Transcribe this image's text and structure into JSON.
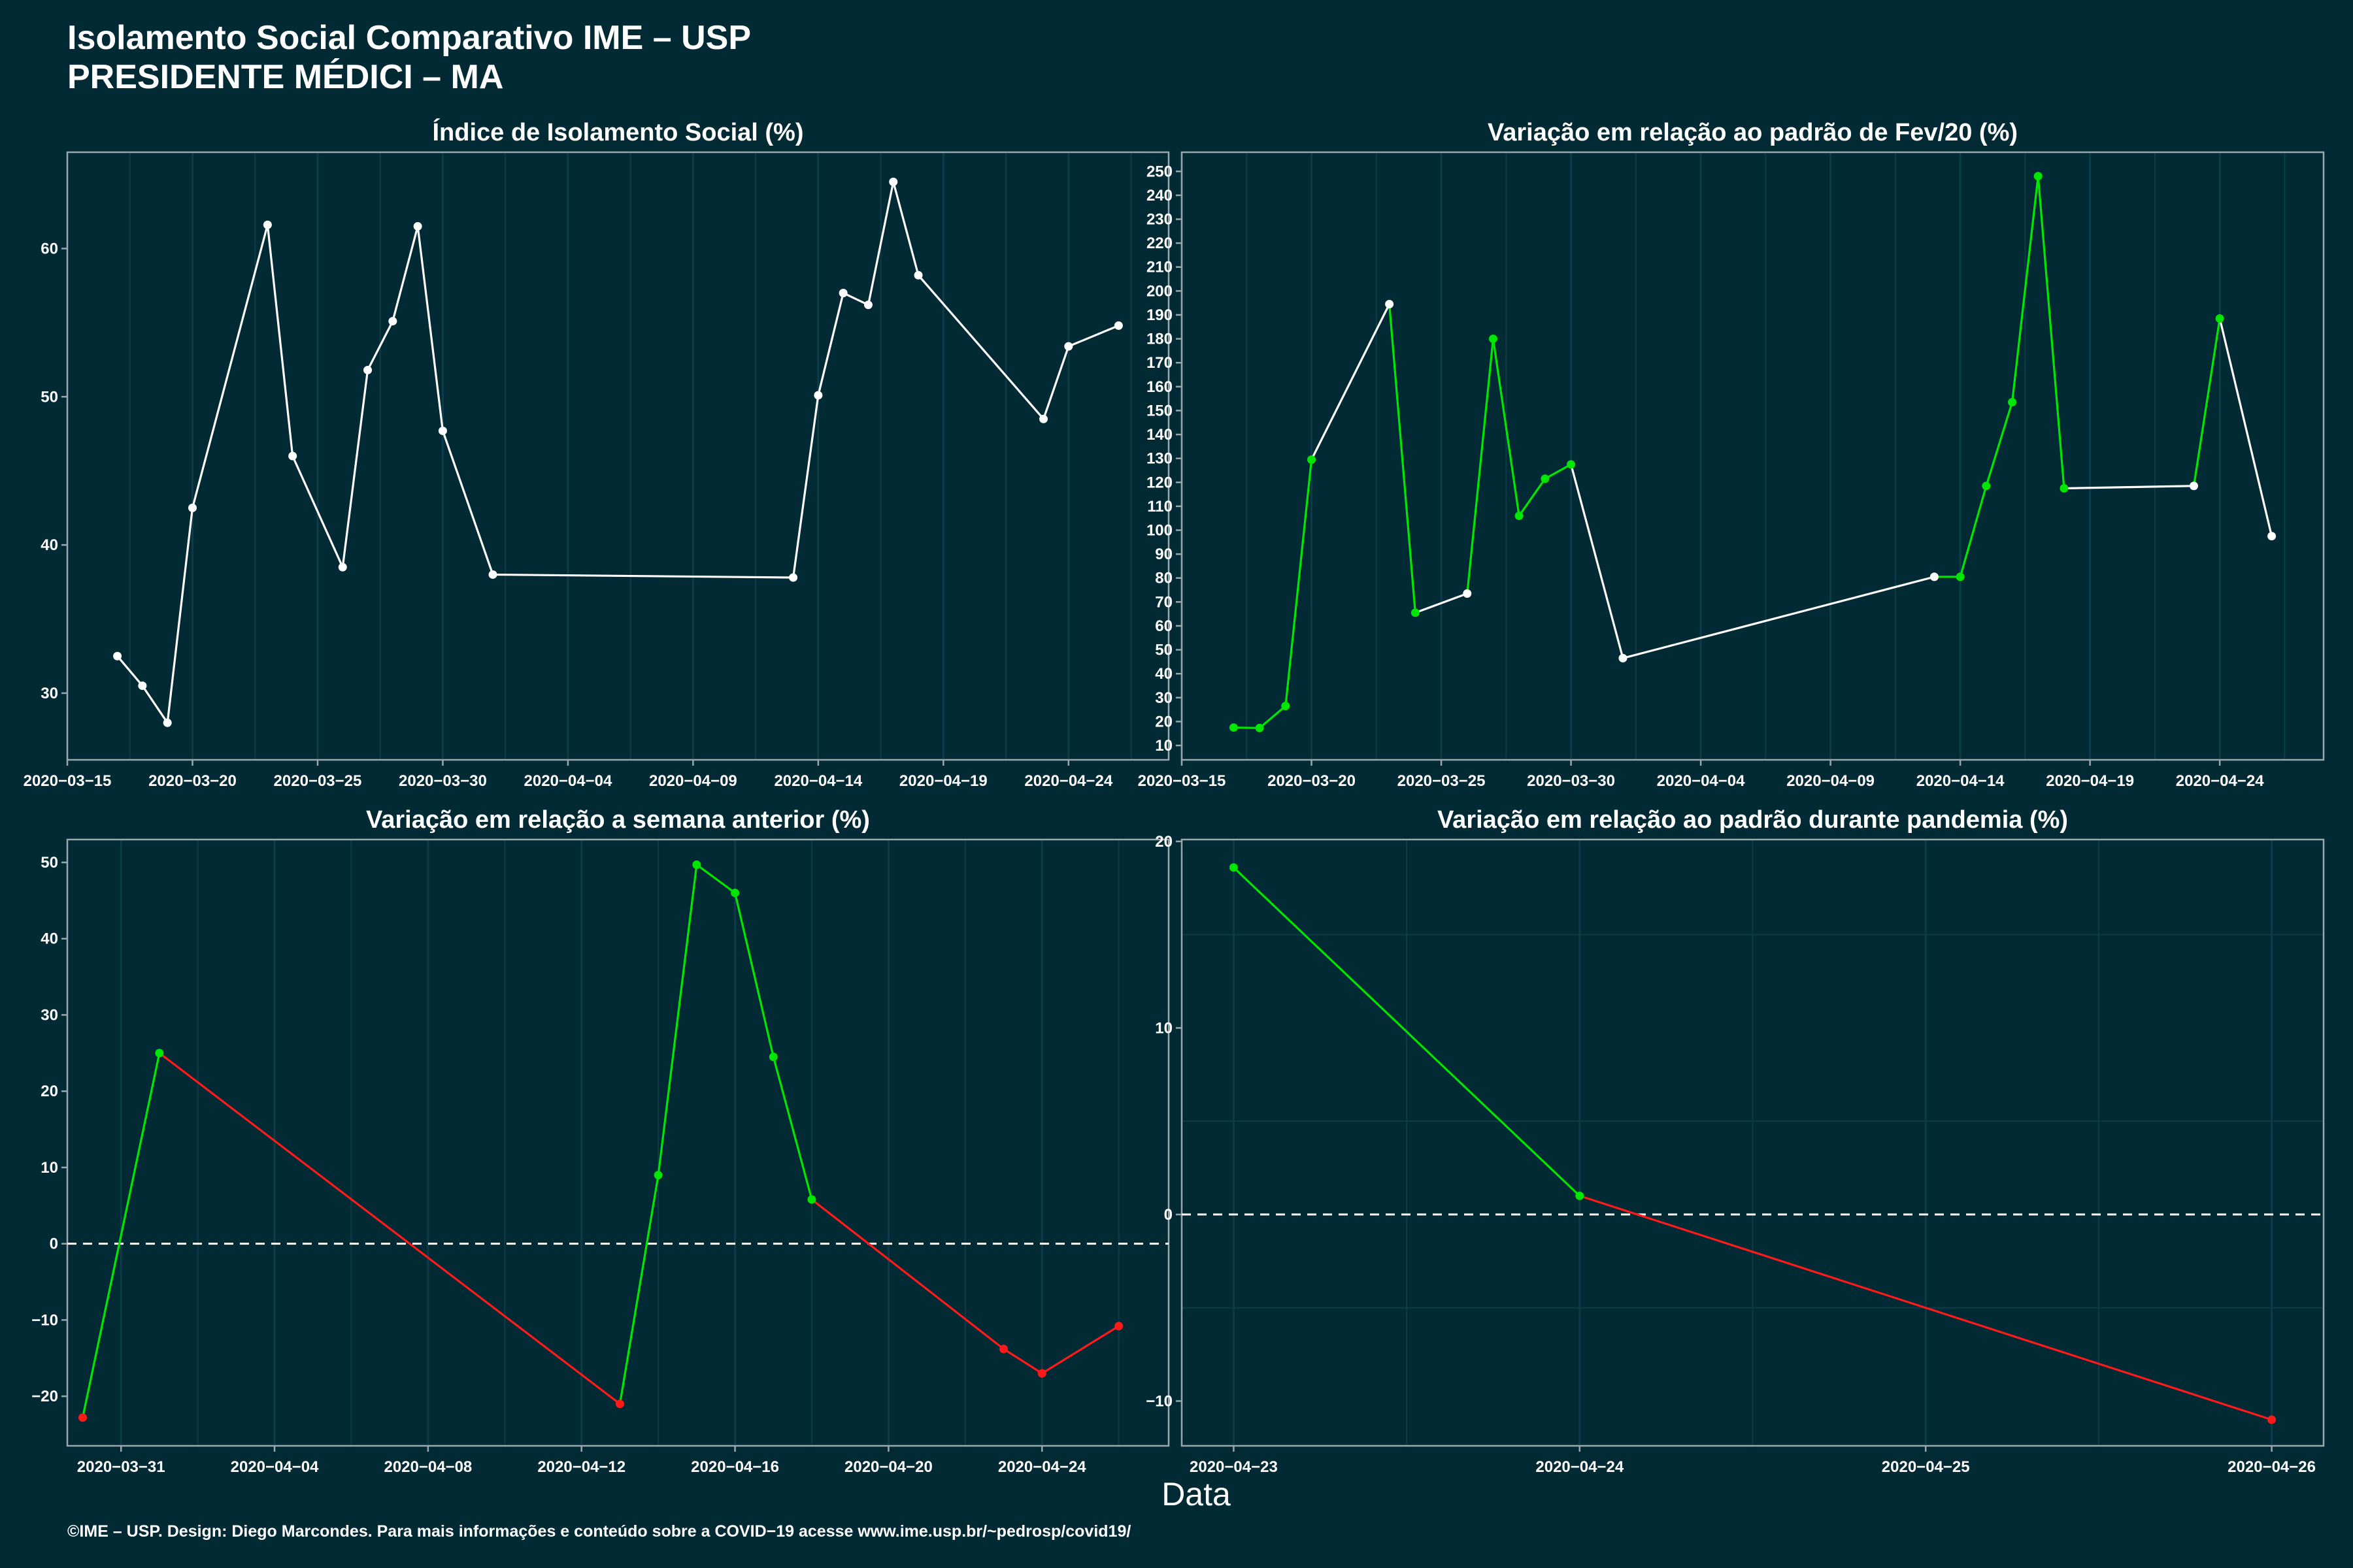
{
  "page": {
    "title_line1": "Isolamento Social Comparativo IME – USP",
    "title_line2": "PRESIDENTE MÉDICI – MA",
    "xlabel": "Data",
    "footer": "©IME – USP. Design: Diego Marcondes. Para mais informações e conteúdo sobre a COVID−19 acesse www.ime.usp.br/~pedrosp/covid19/"
  },
  "colors": {
    "background": "#022a35",
    "axis": "#9aa8ad",
    "grid": "#0d3c48",
    "neutral": "#ffffff",
    "increase": "#00e600",
    "decrease": "#ff1a1a"
  },
  "chart_data": [
    {
      "type": "line",
      "title": "Índice de Isolamento Social (%)",
      "xlim": [
        "2020-03-15",
        "2020-04-28"
      ],
      "ylim": [
        25.5,
        66.5
      ],
      "yticks": [
        30,
        40,
        50,
        60
      ],
      "xticks": [
        "2020-03-15",
        "2020-03-20",
        "2020-03-25",
        "2020-03-30",
        "2020-04-04",
        "2020-04-09",
        "2020-04-14",
        "2020-04-19",
        "2020-04-24"
      ],
      "xtick_labels": [
        "2020−03−15",
        "2020−03−20",
        "2020−03−25",
        "2020−03−30",
        "2020−04−04",
        "2020−04−09",
        "2020−04−14",
        "2020−04−19",
        "2020−04−24"
      ],
      "ytick_labels": [
        "30",
        "40",
        "50",
        "60"
      ],
      "reference_line": null,
      "points": [
        {
          "x": "2020-03-17",
          "y": 32.5,
          "c": "n"
        },
        {
          "x": "2020-03-18",
          "y": 30.5,
          "c": "n"
        },
        {
          "x": "2020-03-19",
          "y": 28.0,
          "c": "n"
        },
        {
          "x": "2020-03-20",
          "y": 42.5,
          "c": "n"
        },
        {
          "x": "2020-03-23",
          "y": 61.6,
          "c": "n"
        },
        {
          "x": "2020-03-24",
          "y": 46.0,
          "c": "n"
        },
        {
          "x": "2020-03-26",
          "y": 38.5,
          "c": "n"
        },
        {
          "x": "2020-03-27",
          "y": 51.8,
          "c": "n"
        },
        {
          "x": "2020-03-28",
          "y": 55.1,
          "c": "n"
        },
        {
          "x": "2020-03-29",
          "y": 61.5,
          "c": "n"
        },
        {
          "x": "2020-03-30",
          "y": 47.7,
          "c": "n"
        },
        {
          "x": "2020-04-01",
          "y": 38.0,
          "c": "n"
        },
        {
          "x": "2020-04-13",
          "y": 37.8,
          "c": "n"
        },
        {
          "x": "2020-04-14",
          "y": 50.1,
          "c": "n"
        },
        {
          "x": "2020-04-15",
          "y": 57.0,
          "c": "n"
        },
        {
          "x": "2020-04-16",
          "y": 56.2,
          "c": "n"
        },
        {
          "x": "2020-04-17",
          "y": 64.5,
          "c": "n"
        },
        {
          "x": "2020-04-18",
          "y": 58.2,
          "c": "n"
        },
        {
          "x": "2020-04-23",
          "y": 48.5,
          "c": "n"
        },
        {
          "x": "2020-04-24",
          "y": 53.4,
          "c": "n"
        },
        {
          "x": "2020-04-26",
          "y": 54.8,
          "c": "n"
        }
      ]
    },
    {
      "type": "line",
      "title": "Variação em relação ao padrão de Fev/20 (%)",
      "xlim": [
        "2020-03-15",
        "2020-04-28"
      ],
      "ylim": [
        4,
        258
      ],
      "yticks": [
        10,
        20,
        30,
        40,
        50,
        60,
        70,
        80,
        90,
        100,
        110,
        120,
        130,
        140,
        150,
        160,
        170,
        180,
        190,
        200,
        210,
        220,
        230,
        240,
        250
      ],
      "ytick_labels": [
        "10",
        "20",
        "30",
        "40",
        "50",
        "60",
        "70",
        "80",
        "90",
        "100",
        "110",
        "120",
        "130",
        "140",
        "150",
        "160",
        "170",
        "180",
        "190",
        "200",
        "210",
        "220",
        "230",
        "240",
        "250"
      ],
      "xticks": [
        "2020-03-15",
        "2020-03-20",
        "2020-03-25",
        "2020-03-30",
        "2020-04-04",
        "2020-04-09",
        "2020-04-14",
        "2020-04-19",
        "2020-04-24"
      ],
      "xtick_labels": [
        "2020−03−15",
        "2020−03−20",
        "2020−03−25",
        "2020−03−30",
        "2020−04−04",
        "2020−04−09",
        "2020−04−14",
        "2020−04−19",
        "2020−04−24"
      ],
      "reference_line": null,
      "points": [
        {
          "x": "2020-03-17",
          "y": 17.5,
          "c": "g"
        },
        {
          "x": "2020-03-18",
          "y": 17.3,
          "c": "g"
        },
        {
          "x": "2020-03-19",
          "y": 26.5,
          "c": "g"
        },
        {
          "x": "2020-03-20",
          "y": 129.5,
          "c": "g"
        },
        {
          "x": "2020-03-23",
          "y": 194.5,
          "c": "n"
        },
        {
          "x": "2020-03-24",
          "y": 65.5,
          "c": "g"
        },
        {
          "x": "2020-03-26",
          "y": 73.5,
          "c": "n"
        },
        {
          "x": "2020-03-27",
          "y": 180.0,
          "c": "g"
        },
        {
          "x": "2020-03-28",
          "y": 106.0,
          "c": "g"
        },
        {
          "x": "2020-03-29",
          "y": 121.5,
          "c": "g"
        },
        {
          "x": "2020-03-30",
          "y": 127.5,
          "c": "g"
        },
        {
          "x": "2020-04-01",
          "y": 46.5,
          "c": "n"
        },
        {
          "x": "2020-04-13",
          "y": 80.5,
          "c": "n"
        },
        {
          "x": "2020-04-14",
          "y": 80.5,
          "c": "g"
        },
        {
          "x": "2020-04-15",
          "y": 118.5,
          "c": "g"
        },
        {
          "x": "2020-04-16",
          "y": 153.5,
          "c": "g"
        },
        {
          "x": "2020-04-17",
          "y": 248.0,
          "c": "g"
        },
        {
          "x": "2020-04-18",
          "y": 117.5,
          "c": "g"
        },
        {
          "x": "2020-04-23",
          "y": 118.5,
          "c": "n"
        },
        {
          "x": "2020-04-24",
          "y": 188.5,
          "c": "g"
        },
        {
          "x": "2020-04-26",
          "y": 97.5,
          "c": "n"
        }
      ]
    },
    {
      "type": "line",
      "title": "Variação em relação a semana anterior (%)",
      "xlim": [
        "2020-03-29.6",
        "2020-04-27.3"
      ],
      "ylim": [
        -26.5,
        53
      ],
      "yticks": [
        -20,
        -10,
        0,
        10,
        20,
        30,
        40,
        50
      ],
      "ytick_labels": [
        "−20",
        "−10",
        "0",
        "10",
        "20",
        "30",
        "40",
        "50"
      ],
      "xticks": [
        "2020-03-31",
        "2020-04-04",
        "2020-04-08",
        "2020-04-12",
        "2020-04-16",
        "2020-04-20",
        "2020-04-24"
      ],
      "xtick_labels": [
        "2020−03−31",
        "2020−04−04",
        "2020−04−08",
        "2020−04−12",
        "2020−04−16",
        "2020−04−20",
        "2020−04−24"
      ],
      "reference_line": 0,
      "points": [
        {
          "x": "2020-03-30",
          "y": -22.8,
          "c": "r"
        },
        {
          "x": "2020-04-01",
          "y": 25.0,
          "c": "g"
        },
        {
          "x": "2020-04-13",
          "y": -21.0,
          "c": "r"
        },
        {
          "x": "2020-04-14",
          "y": 9.0,
          "c": "g"
        },
        {
          "x": "2020-04-15",
          "y": 49.7,
          "c": "g"
        },
        {
          "x": "2020-04-16",
          "y": 46.0,
          "c": "g"
        },
        {
          "x": "2020-04-17",
          "y": 24.5,
          "c": "g"
        },
        {
          "x": "2020-04-18",
          "y": 5.8,
          "c": "g"
        },
        {
          "x": "2020-04-23",
          "y": -13.8,
          "c": "r"
        },
        {
          "x": "2020-04-24",
          "y": -17.0,
          "c": "r"
        },
        {
          "x": "2020-04-26",
          "y": -10.8,
          "c": "r"
        }
      ]
    },
    {
      "type": "line",
      "title": "Variação em relação ao padrão durante pandemia (%)",
      "xlim": [
        "2020-04-22.85",
        "2020-04-26.15"
      ],
      "ylim": [
        -12.4,
        20.1
      ],
      "yticks": [
        -10,
        0,
        10,
        20
      ],
      "ytick_labels": [
        "−10",
        "0",
        "10",
        "20"
      ],
      "xticks": [
        "2020-04-23",
        "2020-04-24",
        "2020-04-25",
        "2020-04-26"
      ],
      "xtick_labels": [
        "2020−04−23",
        "2020−04−24",
        "2020−04−25",
        "2020−04−26"
      ],
      "reference_line": 0,
      "points": [
        {
          "x": "2020-04-23",
          "y": 18.6,
          "c": "g"
        },
        {
          "x": "2020-04-24",
          "y": 1.0,
          "c": "g"
        },
        {
          "x": "2020-04-26",
          "y": -11.0,
          "c": "r"
        }
      ]
    }
  ]
}
